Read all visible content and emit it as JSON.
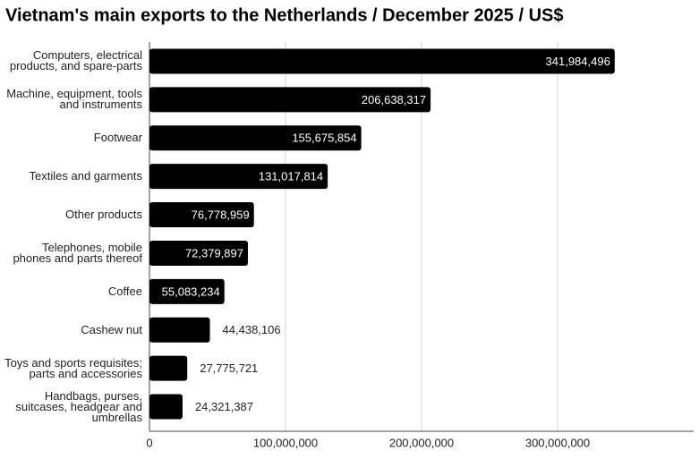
{
  "chart_data": {
    "type": "barh",
    "title": "Vietnam's main exports to the Netherlands / December 2025 / US$",
    "categories": [
      "Computers, electrical products, and spare-parts",
      "Machine, equipment, tools and instruments",
      "Footwear",
      "Textiles and garments",
      "Other products",
      "Telephones, mobile phones and parts thereof",
      "Coffee",
      "Cashew nut",
      "Toys and sports requisites; parts and accessories",
      "Handbags, purses, suitcases, headgear and umbrellas"
    ],
    "values": [
      341984496,
      206638317,
      155675854,
      131017814,
      76778959,
      72379897,
      55083234,
      44438106,
      27775721,
      24321387
    ],
    "value_labels": [
      "341,984,496",
      "206,638,317",
      "155,675,854",
      "131,017,814",
      "76,778,959",
      "72,379,897",
      "55,083,234",
      "44,438,106",
      "27,775,721",
      "24,321,387"
    ],
    "color": "#000000",
    "xlim": [
      0,
      400000000
    ],
    "xticks": [
      0,
      {
        "value": 100000000,
        "label": "100,000,000"
      },
      {
        "value": 200000000,
        "label": "200,000,000"
      },
      {
        "value": 300000000,
        "label": "300,000,000"
      }
    ],
    "grid": true
  }
}
